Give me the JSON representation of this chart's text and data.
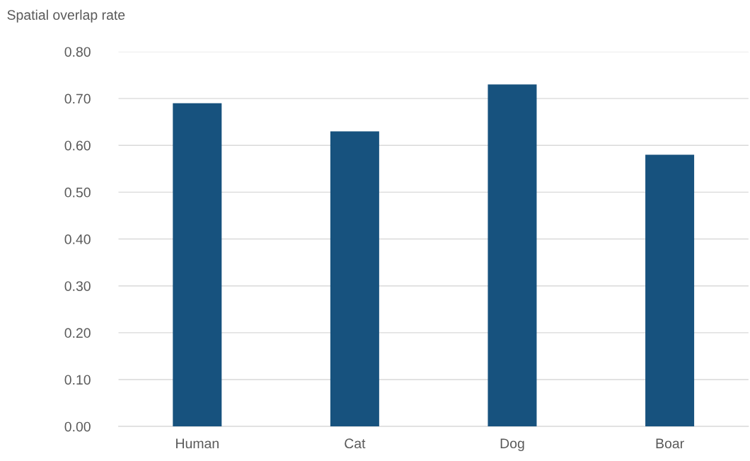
{
  "chart_data": {
    "type": "bar",
    "ylabel": "Spatial overlap rate",
    "categories": [
      "Human",
      "Cat",
      "Dog",
      "Boar"
    ],
    "values": [
      0.69,
      0.63,
      0.73,
      0.58
    ],
    "color": "#17527e",
    "ylim": [
      0,
      0.8
    ],
    "yticks": [
      {
        "value": 0,
        "label": "0.00"
      },
      {
        "value": 0.1,
        "label": "0.10"
      },
      {
        "value": 0.2,
        "label": "0.20"
      },
      {
        "value": 0.3,
        "label": "0.30"
      },
      {
        "value": 0.4,
        "label": "0.40"
      },
      {
        "value": 0.5,
        "label": "0.50"
      },
      {
        "value": 0.6,
        "label": "0.60"
      },
      {
        "value": 0.7,
        "label": "0.70"
      },
      {
        "value": 0.8,
        "label": "0.80"
      }
    ],
    "grid": "y",
    "legend": false
  }
}
